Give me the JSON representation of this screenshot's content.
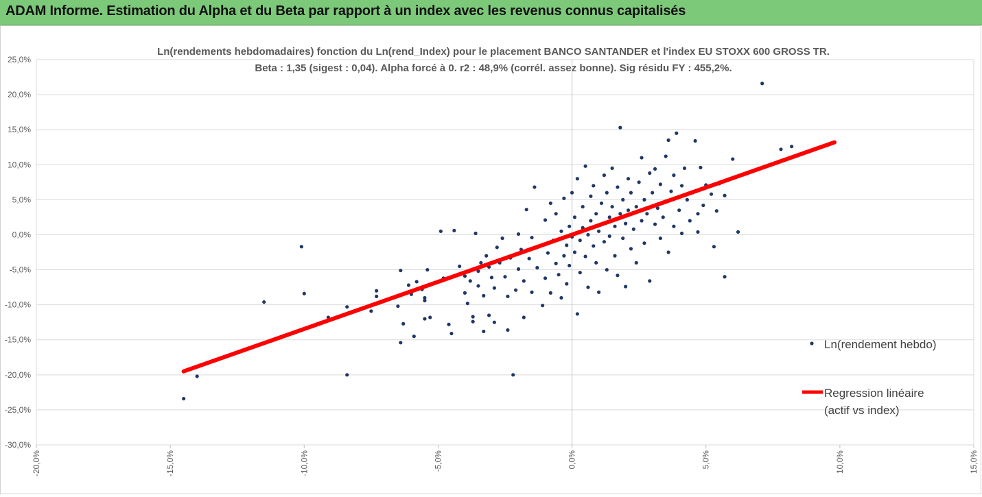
{
  "banner": {
    "title": "ADAM Informe. Estimation du Alpha et du Beta par rapport à un index avec les revenus connus capitalisés"
  },
  "colors": {
    "banner_bg": "#7dc97a",
    "accent": "#f2b800",
    "points": "#1f3864",
    "regression": "#ff0000",
    "grid": "#d9d9d9"
  },
  "chart_data": {
    "type": "scatter",
    "title": "Ln(rendements hebdomadaires) fonction du Ln(rend_Index)  pour le placement BANCO SANTANDER et l'index EU STOXX 600 GROSS TR.",
    "subtitle": "Beta : 1,35 (sigest : 0,04).  Alpha forcé à 0. r2 : 48,9% (corrél. assez bonne). Sig résidu FY : 455,2%.",
    "xlabel": "",
    "ylabel": "",
    "xlim": [
      -0.2,
      0.15
    ],
    "ylim": [
      -0.3,
      0.25
    ],
    "x_ticks": [
      "-20,0%",
      "-15,0%",
      "-10,0%",
      "-5,0%",
      "0,0%",
      "5,0%",
      "10,0%",
      "15,0%"
    ],
    "y_ticks": [
      "25,0%",
      "20,0%",
      "15,0%",
      "10,0%",
      "5,0%",
      "0,0%",
      "-5,0%",
      "-10,0%",
      "-15,0%",
      "-20,0%",
      "-25,0%",
      "-30,0%"
    ],
    "grid": "horizontal",
    "legend_position": "right",
    "series": [
      {
        "name": "Ln(rendement hebdo)",
        "kind": "scatter",
        "points": [
          [
            -0.145,
            -0.234
          ],
          [
            -0.14,
            -0.202
          ],
          [
            -0.115,
            -0.096
          ],
          [
            -0.101,
            -0.017
          ],
          [
            -0.1,
            -0.084
          ],
          [
            -0.091,
            -0.118
          ],
          [
            -0.084,
            -0.103
          ],
          [
            -0.084,
            -0.2
          ],
          [
            -0.075,
            -0.109
          ],
          [
            -0.073,
            -0.08
          ],
          [
            -0.073,
            -0.088
          ],
          [
            -0.065,
            -0.102
          ],
          [
            -0.063,
            -0.127
          ],
          [
            -0.064,
            -0.051
          ],
          [
            -0.064,
            -0.154
          ],
          [
            -0.061,
            -0.072
          ],
          [
            -0.06,
            -0.085
          ],
          [
            -0.059,
            -0.145
          ],
          [
            -0.058,
            -0.067
          ],
          [
            -0.056,
            -0.078
          ],
          [
            -0.055,
            -0.09
          ],
          [
            -0.055,
            -0.094
          ],
          [
            -0.055,
            -0.12
          ],
          [
            -0.054,
            -0.05
          ],
          [
            -0.053,
            -0.118
          ],
          [
            -0.049,
            0.005
          ],
          [
            -0.048,
            -0.062
          ],
          [
            -0.046,
            -0.128
          ],
          [
            -0.045,
            -0.141
          ],
          [
            -0.044,
            0.006
          ],
          [
            -0.042,
            -0.045
          ],
          [
            -0.04,
            -0.059
          ],
          [
            -0.04,
            -0.083
          ],
          [
            -0.039,
            -0.098
          ],
          [
            -0.038,
            -0.066
          ],
          [
            -0.037,
            -0.117
          ],
          [
            -0.037,
            -0.124
          ],
          [
            -0.036,
            0.002
          ],
          [
            -0.035,
            -0.052
          ],
          [
            -0.035,
            -0.073
          ],
          [
            -0.034,
            -0.04
          ],
          [
            -0.033,
            -0.087
          ],
          [
            -0.033,
            -0.138
          ],
          [
            -0.032,
            -0.03
          ],
          [
            -0.031,
            -0.046
          ],
          [
            -0.031,
            -0.115
          ],
          [
            -0.03,
            -0.061
          ],
          [
            -0.029,
            -0.076
          ],
          [
            -0.029,
            -0.125
          ],
          [
            -0.028,
            -0.018
          ],
          [
            -0.027,
            -0.04
          ],
          [
            -0.026,
            -0.005
          ],
          [
            -0.025,
            -0.06
          ],
          [
            -0.024,
            -0.088
          ],
          [
            -0.024,
            -0.136
          ],
          [
            -0.023,
            -0.033
          ],
          [
            -0.022,
            -0.2
          ],
          [
            -0.021,
            -0.079
          ],
          [
            -0.02,
            -0.049
          ],
          [
            -0.02,
            0.001
          ],
          [
            -0.019,
            -0.021
          ],
          [
            -0.018,
            -0.066
          ],
          [
            -0.018,
            -0.118
          ],
          [
            -0.017,
            0.036
          ],
          [
            -0.016,
            -0.034
          ],
          [
            -0.015,
            -0.082
          ],
          [
            -0.015,
            -0.004
          ],
          [
            -0.014,
            0.068
          ],
          [
            -0.013,
            -0.047
          ],
          [
            -0.012,
            -0.016
          ],
          [
            -0.011,
            -0.101
          ],
          [
            -0.01,
            0.021
          ],
          [
            -0.01,
            -0.062
          ],
          [
            -0.009,
            -0.026
          ],
          [
            -0.008,
            0.045
          ],
          [
            -0.008,
            -0.083
          ],
          [
            -0.007,
            -0.008
          ],
          [
            -0.006,
            -0.041
          ],
          [
            -0.006,
            0.03
          ],
          [
            -0.005,
            -0.057
          ],
          [
            -0.004,
            0.005
          ],
          [
            -0.004,
            -0.09
          ],
          [
            -0.003,
            -0.03
          ],
          [
            -0.003,
            0.052
          ],
          [
            -0.002,
            -0.015
          ],
          [
            -0.002,
            -0.07
          ],
          [
            -0.001,
            0.012
          ],
          [
            -0.001,
            -0.044
          ],
          [
            0.0,
            -0.003
          ],
          [
            0.0,
            0.06
          ],
          [
            0.001,
            -0.025
          ],
          [
            0.001,
            0.025
          ],
          [
            0.002,
            -0.113
          ],
          [
            0.002,
            0.08
          ],
          [
            0.003,
            -0.008
          ],
          [
            0.003,
            -0.054
          ],
          [
            0.004,
            0.04
          ],
          [
            0.004,
            0.01
          ],
          [
            0.005,
            -0.031
          ],
          [
            0.005,
            0.098
          ],
          [
            0.006,
            0.0
          ],
          [
            0.006,
            -0.075
          ],
          [
            0.007,
            0.055
          ],
          [
            0.007,
            0.02
          ],
          [
            0.008,
            -0.016
          ],
          [
            0.008,
            0.07
          ],
          [
            0.009,
            0.03
          ],
          [
            0.009,
            -0.04
          ],
          [
            0.01,
            0.005
          ],
          [
            0.01,
            -0.082
          ],
          [
            0.011,
            0.045
          ],
          [
            0.011,
            0.015
          ],
          [
            0.012,
            -0.01
          ],
          [
            0.012,
            0.085
          ],
          [
            0.013,
            0.06
          ],
          [
            0.013,
            -0.05
          ],
          [
            0.014,
            0.025
          ],
          [
            0.014,
            -0.002
          ],
          [
            0.015,
            0.095
          ],
          [
            0.015,
            0.04
          ],
          [
            0.016,
            -0.03
          ],
          [
            0.016,
            0.012
          ],
          [
            0.017,
            0.068
          ],
          [
            0.017,
            -0.058
          ],
          [
            0.018,
            0.03
          ],
          [
            0.018,
            0.153
          ],
          [
            0.019,
            -0.005
          ],
          [
            0.019,
            0.05
          ],
          [
            0.02,
            0.016
          ],
          [
            0.02,
            -0.074
          ],
          [
            0.021,
            0.08
          ],
          [
            0.021,
            0.035
          ],
          [
            0.022,
            -0.02
          ],
          [
            0.022,
            0.06
          ],
          [
            0.023,
            0.008
          ],
          [
            0.024,
            0.04
          ],
          [
            0.024,
            -0.04
          ],
          [
            0.025,
            0.075
          ],
          [
            0.026,
            0.02
          ],
          [
            0.026,
            0.11
          ],
          [
            0.027,
            -0.012
          ],
          [
            0.027,
            0.05
          ],
          [
            0.028,
            0.03
          ],
          [
            0.029,
            0.088
          ],
          [
            0.029,
            -0.066
          ],
          [
            0.03,
            0.06
          ],
          [
            0.031,
            0.015
          ],
          [
            0.031,
            0.094
          ],
          [
            0.032,
            0.038
          ],
          [
            0.033,
            -0.005
          ],
          [
            0.033,
            0.072
          ],
          [
            0.034,
            0.025
          ],
          [
            0.035,
            0.112
          ],
          [
            0.035,
            0.048
          ],
          [
            0.036,
            -0.025
          ],
          [
            0.036,
            0.135
          ],
          [
            0.037,
            0.062
          ],
          [
            0.038,
            0.012
          ],
          [
            0.038,
            0.085
          ],
          [
            0.039,
            0.145
          ],
          [
            0.04,
            0.035
          ],
          [
            0.041,
            0.07
          ],
          [
            0.041,
            0.002
          ],
          [
            0.042,
            0.095
          ],
          [
            0.043,
            0.05
          ],
          [
            0.044,
            0.02
          ],
          [
            0.045,
            0.06
          ],
          [
            0.046,
            0.134
          ],
          [
            0.047,
            0.03
          ],
          [
            0.047,
            0.004
          ],
          [
            0.048,
            0.096
          ],
          [
            0.049,
            0.042
          ],
          [
            0.05,
            0.071
          ],
          [
            0.052,
            0.058
          ],
          [
            0.053,
            -0.017
          ],
          [
            0.054,
            0.034
          ],
          [
            0.055,
            0.073
          ],
          [
            0.057,
            -0.06
          ],
          [
            0.057,
            0.056
          ],
          [
            0.06,
            0.108
          ],
          [
            0.062,
            0.004
          ],
          [
            0.078,
            0.122
          ],
          [
            0.082,
            0.126
          ],
          [
            0.071,
            0.216
          ]
        ]
      },
      {
        "name": "Regression linéaire (actif vs index)",
        "kind": "line",
        "x": [
          -0.145,
          0.098
        ],
        "y": [
          -0.195,
          0.132
        ]
      }
    ]
  },
  "legend": {
    "points_label": "Ln(rendement hebdo)",
    "line_label_1": "Regression linéaire",
    "line_label_2": "(actif vs index)"
  }
}
